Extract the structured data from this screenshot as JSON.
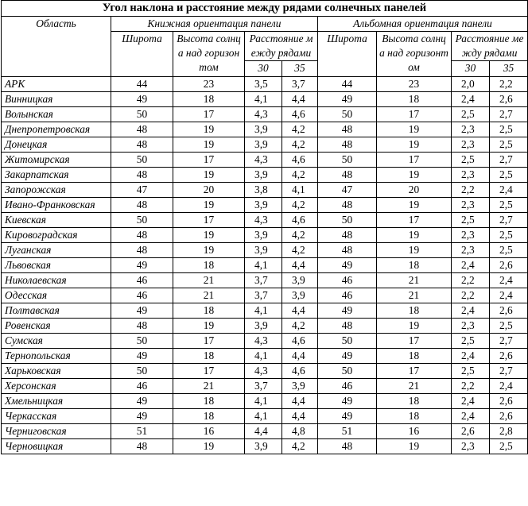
{
  "title": "Угол наклона и расстояние между рядами солнечных панелей",
  "headers": {
    "portrait": "Книжная ориентация панели",
    "landscape": "Альбомная ориентация панели",
    "region": "Область",
    "latitude": "Широта",
    "sun_height": "Высота солнца над горизонтом",
    "distance": "Расстояние между рядами",
    "deg30": "30",
    "deg35": "35"
  },
  "rows": [
    {
      "region": "АРК",
      "lat": "44",
      "sun": "23",
      "d30": "3,5",
      "d35": "3,7",
      "lat2": "44",
      "sun2": "23",
      "e30": "2,0",
      "e35": "2,2"
    },
    {
      "region": "Винницкая",
      "lat": "49",
      "sun": "18",
      "d30": "4,1",
      "d35": "4,4",
      "lat2": "49",
      "sun2": "18",
      "e30": "2,4",
      "e35": "2,6"
    },
    {
      "region": "Волынская",
      "lat": "50",
      "sun": "17",
      "d30": "4,3",
      "d35": "4,6",
      "lat2": "50",
      "sun2": "17",
      "e30": "2,5",
      "e35": "2,7"
    },
    {
      "region": "Днепропетровская",
      "lat": "48",
      "sun": "19",
      "d30": "3,9",
      "d35": "4,2",
      "lat2": "48",
      "sun2": "19",
      "e30": "2,3",
      "e35": "2,5"
    },
    {
      "region": "Донецкая",
      "lat": "48",
      "sun": "19",
      "d30": "3,9",
      "d35": "4,2",
      "lat2": "48",
      "sun2": "19",
      "e30": "2,3",
      "e35": "2,5"
    },
    {
      "region": "Житомирская",
      "lat": "50",
      "sun": "17",
      "d30": "4,3",
      "d35": "4,6",
      "lat2": "50",
      "sun2": "17",
      "e30": "2,5",
      "e35": "2,7"
    },
    {
      "region": "Закарпатская",
      "lat": "48",
      "sun": "19",
      "d30": "3,9",
      "d35": "4,2",
      "lat2": "48",
      "sun2": "19",
      "e30": "2,3",
      "e35": "2,5"
    },
    {
      "region": "Запорожская",
      "lat": "47",
      "sun": "20",
      "d30": "3,8",
      "d35": "4,1",
      "lat2": "47",
      "sun2": "20",
      "e30": "2,2",
      "e35": "2,4"
    },
    {
      "region": "Ивано-Франковская",
      "lat": "48",
      "sun": "19",
      "d30": "3,9",
      "d35": "4,2",
      "lat2": "48",
      "sun2": "19",
      "e30": "2,3",
      "e35": "2,5"
    },
    {
      "region": "Киевская",
      "lat": "50",
      "sun": "17",
      "d30": "4,3",
      "d35": "4,6",
      "lat2": "50",
      "sun2": "17",
      "e30": "2,5",
      "e35": "2,7"
    },
    {
      "region": "Кировоградская",
      "lat": "48",
      "sun": "19",
      "d30": "3,9",
      "d35": "4,2",
      "lat2": "48",
      "sun2": "19",
      "e30": "2,3",
      "e35": "2,5"
    },
    {
      "region": "Луганская",
      "lat": "48",
      "sun": "19",
      "d30": "3,9",
      "d35": "4,2",
      "lat2": "48",
      "sun2": "19",
      "e30": "2,3",
      "e35": "2,5"
    },
    {
      "region": "Львовская",
      "lat": "49",
      "sun": "18",
      "d30": "4,1",
      "d35": "4,4",
      "lat2": "49",
      "sun2": "18",
      "e30": "2,4",
      "e35": "2,6"
    },
    {
      "region": "Николаевская",
      "lat": "46",
      "sun": "21",
      "d30": "3,7",
      "d35": "3,9",
      "lat2": "46",
      "sun2": "21",
      "e30": "2,2",
      "e35": "2,4"
    },
    {
      "region": "Одесская",
      "lat": "46",
      "sun": "21",
      "d30": "3,7",
      "d35": "3,9",
      "lat2": "46",
      "sun2": "21",
      "e30": "2,2",
      "e35": "2,4"
    },
    {
      "region": "Полтавская",
      "lat": "49",
      "sun": "18",
      "d30": "4,1",
      "d35": "4,4",
      "lat2": "49",
      "sun2": "18",
      "e30": "2,4",
      "e35": "2,6"
    },
    {
      "region": "Ровенская",
      "lat": "48",
      "sun": "19",
      "d30": "3,9",
      "d35": "4,2",
      "lat2": "48",
      "sun2": "19",
      "e30": "2,3",
      "e35": "2,5"
    },
    {
      "region": "Сумская",
      "lat": "50",
      "sun": "17",
      "d30": "4,3",
      "d35": "4,6",
      "lat2": "50",
      "sun2": "17",
      "e30": "2,5",
      "e35": "2,7"
    },
    {
      "region": "Тернопольская",
      "lat": "49",
      "sun": "18",
      "d30": "4,1",
      "d35": "4,4",
      "lat2": "49",
      "sun2": "18",
      "e30": "2,4",
      "e35": "2,6"
    },
    {
      "region": "Харьковская",
      "lat": "50",
      "sun": "17",
      "d30": "4,3",
      "d35": "4,6",
      "lat2": "50",
      "sun2": "17",
      "e30": "2,5",
      "e35": "2,7"
    },
    {
      "region": "Херсонская",
      "lat": "46",
      "sun": "21",
      "d30": "3,7",
      "d35": "3,9",
      "lat2": "46",
      "sun2": "21",
      "e30": "2,2",
      "e35": "2,4"
    },
    {
      "region": "Хмельницкая",
      "lat": "49",
      "sun": "18",
      "d30": "4,1",
      "d35": "4,4",
      "lat2": "49",
      "sun2": "18",
      "e30": "2,4",
      "e35": "2,6"
    },
    {
      "region": "Черкасская",
      "lat": "49",
      "sun": "18",
      "d30": "4,1",
      "d35": "4,4",
      "lat2": "49",
      "sun2": "18",
      "e30": "2,4",
      "e35": "2,6"
    },
    {
      "region": "Черниговская",
      "lat": "51",
      "sun": "16",
      "d30": "4,4",
      "d35": "4,8",
      "lat2": "51",
      "sun2": "16",
      "e30": "2,6",
      "e35": "2,8"
    },
    {
      "region": "Черновицкая",
      "lat": "48",
      "sun": "19",
      "d30": "3,9",
      "d35": "4,2",
      "lat2": "48",
      "sun2": "19",
      "e30": "2,3",
      "e35": "2,5"
    }
  ]
}
